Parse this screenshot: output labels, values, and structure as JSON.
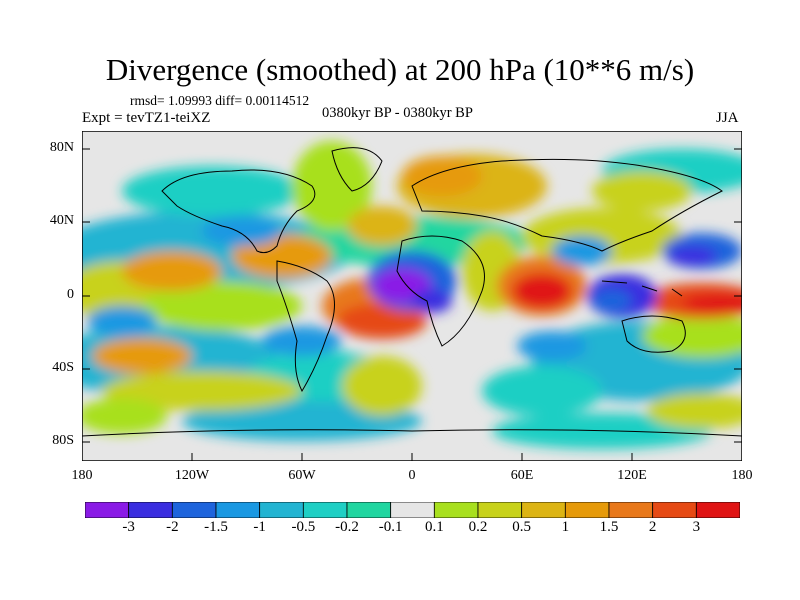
{
  "title": "Divergence (smoothed) at 200 hPa (10**6 m/s)",
  "stats": "rmsd= 1.09993  diff= 0.00114512",
  "experiment": "Expt = tevTZ1-teiXZ",
  "period": "0380kyr BP - 0380kyr BP",
  "season": "JJA",
  "y_axis_labels": [
    "80N",
    "40N",
    "0",
    "40S",
    "80S"
  ],
  "x_axis_labels": [
    "180",
    "120W",
    "60W",
    "0",
    "60E",
    "120E",
    "180"
  ],
  "colorbar": {
    "colors": [
      "#8a1ae6",
      "#3a2ee0",
      "#1e64dc",
      "#1a98e2",
      "#22b4d2",
      "#1ecfc4",
      "#20d6a0",
      "#e6e6e6",
      "#a8e01e",
      "#c8d21a",
      "#dcb414",
      "#e69a0a",
      "#e8781a",
      "#e64a14",
      "#e01414"
    ],
    "labels": [
      "-3",
      "-2",
      "-1.5",
      "-1",
      "-0.5",
      "-0.2",
      "-0.1",
      "0.1",
      "0.2",
      "0.5",
      "1",
      "1.5",
      "2",
      "3"
    ]
  },
  "map_data": {
    "projection": "cylindrical equidistant",
    "lon_range": [
      -180,
      180
    ],
    "lat_range": [
      -90,
      90
    ],
    "variable": "200 hPa divergence difference",
    "units": "10**6 m/s",
    "contour_levels": [
      -3,
      -2,
      -1.5,
      -1,
      -0.5,
      -0.2,
      -0.1,
      0.1,
      0.2,
      0.5,
      1,
      1.5,
      2,
      3
    ]
  }
}
